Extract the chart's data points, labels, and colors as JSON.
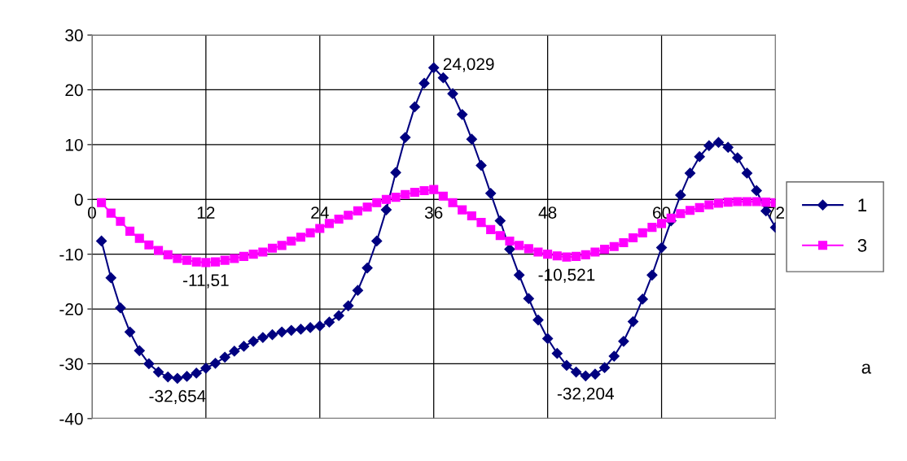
{
  "chart_data": {
    "type": "line",
    "x": [
      1,
      2,
      3,
      4,
      5,
      6,
      7,
      8,
      9,
      10,
      11,
      12,
      13,
      14,
      15,
      16,
      17,
      18,
      19,
      20,
      21,
      22,
      23,
      24,
      25,
      26,
      27,
      28,
      29,
      30,
      31,
      32,
      33,
      34,
      35,
      36,
      37,
      38,
      39,
      40,
      41,
      42,
      43,
      44,
      45,
      46,
      47,
      48,
      49,
      50,
      51,
      52,
      53,
      54,
      55,
      56,
      57,
      58,
      59,
      60,
      61,
      62,
      63,
      64,
      65,
      66,
      67,
      68,
      69,
      70,
      71,
      72
    ],
    "series": [
      {
        "name": "1",
        "color": "#000080",
        "marker": "diamond",
        "values": [
          -7.6,
          -14.3,
          -19.8,
          -24.2,
          -27.6,
          -30.0,
          -31.5,
          -32.4,
          -32.654,
          -32.3,
          -31.7,
          -30.8,
          -29.9,
          -28.8,
          -27.7,
          -26.8,
          -25.9,
          -25.2,
          -24.7,
          -24.2,
          -23.9,
          -23.7,
          -23.4,
          -23.1,
          -22.4,
          -21.2,
          -19.4,
          -16.6,
          -12.5,
          -7.6,
          -1.9,
          4.9,
          11.3,
          16.9,
          21.2,
          24.029,
          22.2,
          19.3,
          15.5,
          11.0,
          6.2,
          1.1,
          -3.9,
          -9.1,
          -13.8,
          -18.1,
          -22.0,
          -25.4,
          -28.1,
          -30.3,
          -31.5,
          -32.204,
          -31.9,
          -30.7,
          -28.6,
          -25.9,
          -22.3,
          -18.2,
          -13.8,
          -8.8,
          -3.9,
          0.8,
          4.8,
          7.8,
          9.8,
          10.4,
          9.5,
          7.6,
          4.8,
          1.6,
          -2.1,
          -5.1
        ]
      },
      {
        "name": "3",
        "color": "#ff00ff",
        "marker": "square",
        "values": [
          -0.6,
          -2.5,
          -4.0,
          -5.8,
          -7.1,
          -8.3,
          -9.3,
          -10.1,
          -10.8,
          -11.1,
          -11.4,
          -11.51,
          -11.4,
          -11.1,
          -10.8,
          -10.4,
          -10.0,
          -9.6,
          -8.9,
          -8.4,
          -7.6,
          -6.9,
          -6.1,
          -5.3,
          -4.4,
          -3.6,
          -2.9,
          -2.1,
          -1.4,
          -0.6,
          0.0,
          0.4,
          0.9,
          1.3,
          1.6,
          1.8,
          0.6,
          -0.6,
          -1.9,
          -3.0,
          -4.2,
          -5.5,
          -6.6,
          -7.6,
          -8.4,
          -9.0,
          -9.6,
          -10.0,
          -10.3,
          -10.521,
          -10.4,
          -10.1,
          -9.6,
          -9.1,
          -8.6,
          -7.9,
          -7.0,
          -6.1,
          -5.1,
          -4.4,
          -3.4,
          -2.6,
          -2.0,
          -1.5,
          -1.0,
          -0.7,
          -0.5,
          -0.4,
          -0.4,
          -0.4,
          -0.5,
          -0.6
        ]
      }
    ],
    "xlim": [
      0,
      72
    ],
    "xticks": [
      0,
      12,
      24,
      36,
      48,
      60,
      72
    ],
    "ylim": [
      -40,
      30
    ],
    "yticks": [
      -40,
      -30,
      -20,
      -10,
      0,
      10,
      20,
      30
    ],
    "grid": true,
    "legend": "right",
    "line_style": "solid",
    "annotations": [
      {
        "text": "-32,654",
        "x": 9,
        "y": -32.654
      },
      {
        "text": "-11,51",
        "x": 12,
        "y": -11.51
      },
      {
        "text": "24,029",
        "x": 36,
        "y": 24.029
      },
      {
        "text": "-10,521",
        "x": 50,
        "y": -10.521
      },
      {
        "text": "-32,204",
        "x": 52,
        "y": -32.204
      },
      "a"
    ]
  }
}
